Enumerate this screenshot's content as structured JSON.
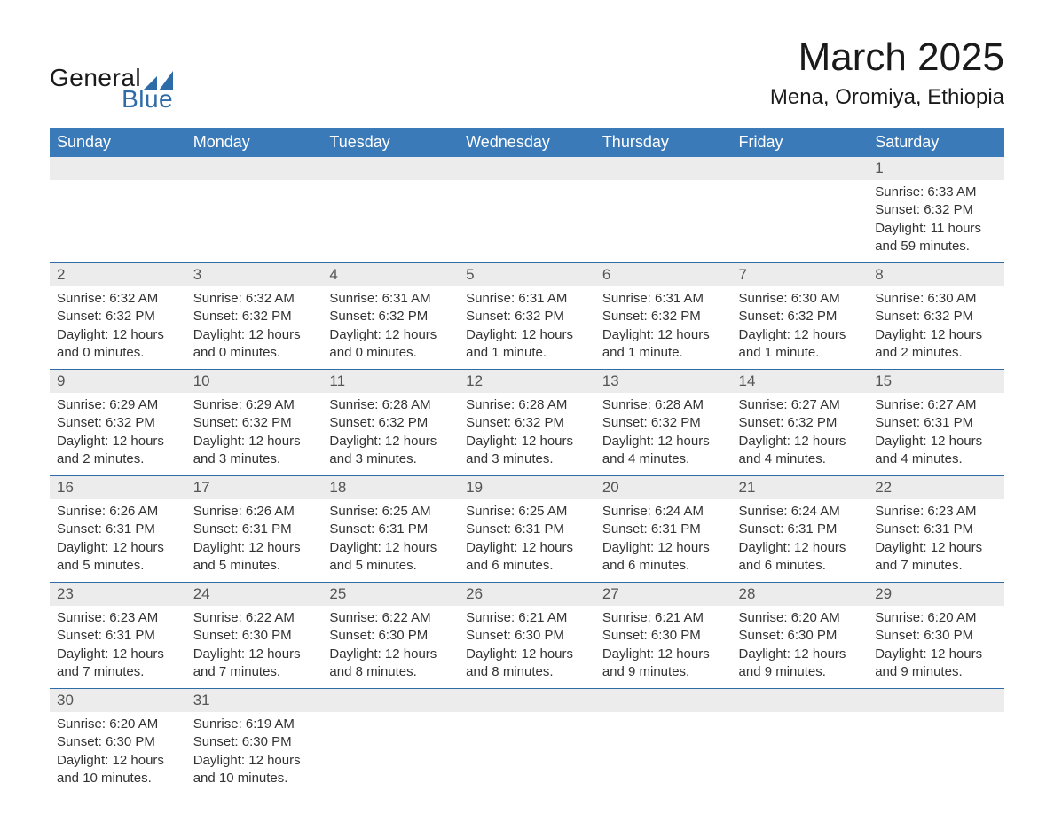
{
  "logo": {
    "word1": "General",
    "word2": "Blue",
    "mark_color": "#2e6ca8",
    "text_color": "#1a1a1a"
  },
  "title": "March 2025",
  "location": "Mena, Oromiya, Ethiopia",
  "colors": {
    "header_bg": "#3a7ab8",
    "header_text": "#ffffff",
    "daynum_bg": "#ececec",
    "daynum_text": "#555555",
    "row_border": "#2e6ca8",
    "body_text": "#333333",
    "background": "#ffffff"
  },
  "typography": {
    "title_fontsize": 44,
    "location_fontsize": 24,
    "header_fontsize": 18,
    "daynum_fontsize": 17,
    "detail_fontsize": 15,
    "font_family": "Arial"
  },
  "weekdays": [
    "Sunday",
    "Monday",
    "Tuesday",
    "Wednesday",
    "Thursday",
    "Friday",
    "Saturday"
  ],
  "weeks": [
    [
      null,
      null,
      null,
      null,
      null,
      null,
      {
        "n": "1",
        "sr": "Sunrise: 6:33 AM",
        "ss": "Sunset: 6:32 PM",
        "d1": "Daylight: 11 hours",
        "d2": "and 59 minutes."
      }
    ],
    [
      {
        "n": "2",
        "sr": "Sunrise: 6:32 AM",
        "ss": "Sunset: 6:32 PM",
        "d1": "Daylight: 12 hours",
        "d2": "and 0 minutes."
      },
      {
        "n": "3",
        "sr": "Sunrise: 6:32 AM",
        "ss": "Sunset: 6:32 PM",
        "d1": "Daylight: 12 hours",
        "d2": "and 0 minutes."
      },
      {
        "n": "4",
        "sr": "Sunrise: 6:31 AM",
        "ss": "Sunset: 6:32 PM",
        "d1": "Daylight: 12 hours",
        "d2": "and 0 minutes."
      },
      {
        "n": "5",
        "sr": "Sunrise: 6:31 AM",
        "ss": "Sunset: 6:32 PM",
        "d1": "Daylight: 12 hours",
        "d2": "and 1 minute."
      },
      {
        "n": "6",
        "sr": "Sunrise: 6:31 AM",
        "ss": "Sunset: 6:32 PM",
        "d1": "Daylight: 12 hours",
        "d2": "and 1 minute."
      },
      {
        "n": "7",
        "sr": "Sunrise: 6:30 AM",
        "ss": "Sunset: 6:32 PM",
        "d1": "Daylight: 12 hours",
        "d2": "and 1 minute."
      },
      {
        "n": "8",
        "sr": "Sunrise: 6:30 AM",
        "ss": "Sunset: 6:32 PM",
        "d1": "Daylight: 12 hours",
        "d2": "and 2 minutes."
      }
    ],
    [
      {
        "n": "9",
        "sr": "Sunrise: 6:29 AM",
        "ss": "Sunset: 6:32 PM",
        "d1": "Daylight: 12 hours",
        "d2": "and 2 minutes."
      },
      {
        "n": "10",
        "sr": "Sunrise: 6:29 AM",
        "ss": "Sunset: 6:32 PM",
        "d1": "Daylight: 12 hours",
        "d2": "and 3 minutes."
      },
      {
        "n": "11",
        "sr": "Sunrise: 6:28 AM",
        "ss": "Sunset: 6:32 PM",
        "d1": "Daylight: 12 hours",
        "d2": "and 3 minutes."
      },
      {
        "n": "12",
        "sr": "Sunrise: 6:28 AM",
        "ss": "Sunset: 6:32 PM",
        "d1": "Daylight: 12 hours",
        "d2": "and 3 minutes."
      },
      {
        "n": "13",
        "sr": "Sunrise: 6:28 AM",
        "ss": "Sunset: 6:32 PM",
        "d1": "Daylight: 12 hours",
        "d2": "and 4 minutes."
      },
      {
        "n": "14",
        "sr": "Sunrise: 6:27 AM",
        "ss": "Sunset: 6:32 PM",
        "d1": "Daylight: 12 hours",
        "d2": "and 4 minutes."
      },
      {
        "n": "15",
        "sr": "Sunrise: 6:27 AM",
        "ss": "Sunset: 6:31 PM",
        "d1": "Daylight: 12 hours",
        "d2": "and 4 minutes."
      }
    ],
    [
      {
        "n": "16",
        "sr": "Sunrise: 6:26 AM",
        "ss": "Sunset: 6:31 PM",
        "d1": "Daylight: 12 hours",
        "d2": "and 5 minutes."
      },
      {
        "n": "17",
        "sr": "Sunrise: 6:26 AM",
        "ss": "Sunset: 6:31 PM",
        "d1": "Daylight: 12 hours",
        "d2": "and 5 minutes."
      },
      {
        "n": "18",
        "sr": "Sunrise: 6:25 AM",
        "ss": "Sunset: 6:31 PM",
        "d1": "Daylight: 12 hours",
        "d2": "and 5 minutes."
      },
      {
        "n": "19",
        "sr": "Sunrise: 6:25 AM",
        "ss": "Sunset: 6:31 PM",
        "d1": "Daylight: 12 hours",
        "d2": "and 6 minutes."
      },
      {
        "n": "20",
        "sr": "Sunrise: 6:24 AM",
        "ss": "Sunset: 6:31 PM",
        "d1": "Daylight: 12 hours",
        "d2": "and 6 minutes."
      },
      {
        "n": "21",
        "sr": "Sunrise: 6:24 AM",
        "ss": "Sunset: 6:31 PM",
        "d1": "Daylight: 12 hours",
        "d2": "and 6 minutes."
      },
      {
        "n": "22",
        "sr": "Sunrise: 6:23 AM",
        "ss": "Sunset: 6:31 PM",
        "d1": "Daylight: 12 hours",
        "d2": "and 7 minutes."
      }
    ],
    [
      {
        "n": "23",
        "sr": "Sunrise: 6:23 AM",
        "ss": "Sunset: 6:31 PM",
        "d1": "Daylight: 12 hours",
        "d2": "and 7 minutes."
      },
      {
        "n": "24",
        "sr": "Sunrise: 6:22 AM",
        "ss": "Sunset: 6:30 PM",
        "d1": "Daylight: 12 hours",
        "d2": "and 7 minutes."
      },
      {
        "n": "25",
        "sr": "Sunrise: 6:22 AM",
        "ss": "Sunset: 6:30 PM",
        "d1": "Daylight: 12 hours",
        "d2": "and 8 minutes."
      },
      {
        "n": "26",
        "sr": "Sunrise: 6:21 AM",
        "ss": "Sunset: 6:30 PM",
        "d1": "Daylight: 12 hours",
        "d2": "and 8 minutes."
      },
      {
        "n": "27",
        "sr": "Sunrise: 6:21 AM",
        "ss": "Sunset: 6:30 PM",
        "d1": "Daylight: 12 hours",
        "d2": "and 9 minutes."
      },
      {
        "n": "28",
        "sr": "Sunrise: 6:20 AM",
        "ss": "Sunset: 6:30 PM",
        "d1": "Daylight: 12 hours",
        "d2": "and 9 minutes."
      },
      {
        "n": "29",
        "sr": "Sunrise: 6:20 AM",
        "ss": "Sunset: 6:30 PM",
        "d1": "Daylight: 12 hours",
        "d2": "and 9 minutes."
      }
    ],
    [
      {
        "n": "30",
        "sr": "Sunrise: 6:20 AM",
        "ss": "Sunset: 6:30 PM",
        "d1": "Daylight: 12 hours",
        "d2": "and 10 minutes."
      },
      {
        "n": "31",
        "sr": "Sunrise: 6:19 AM",
        "ss": "Sunset: 6:30 PM",
        "d1": "Daylight: 12 hours",
        "d2": "and 10 minutes."
      },
      null,
      null,
      null,
      null,
      null
    ]
  ]
}
